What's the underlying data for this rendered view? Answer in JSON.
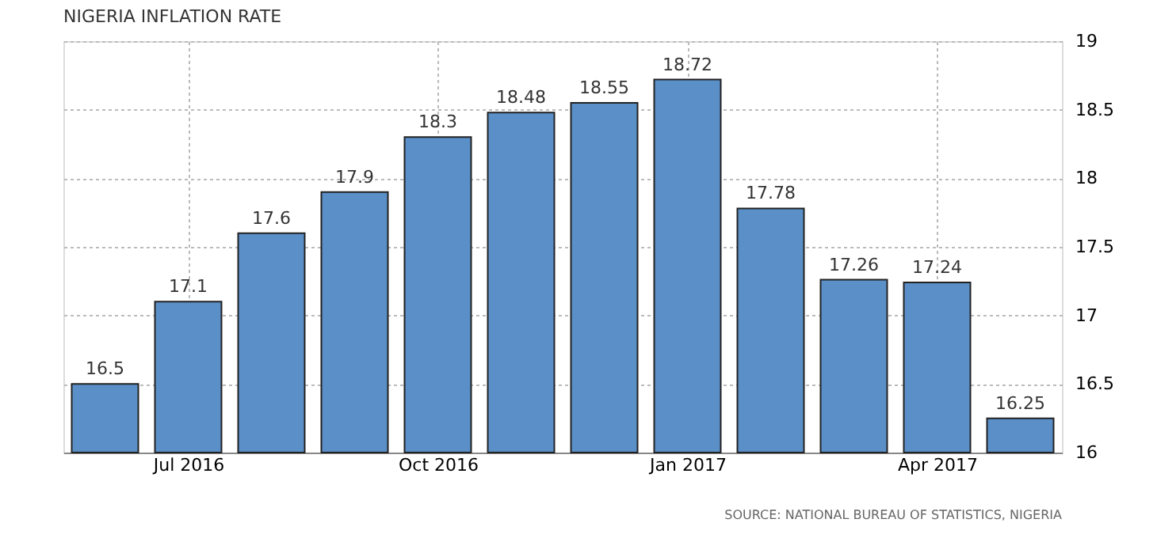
{
  "chart_data": {
    "type": "bar",
    "title": "NIGERIA INFLATION RATE",
    "categories": [
      null,
      "Jul 2016",
      null,
      null,
      "Oct 2016",
      null,
      null,
      "Jan 2017",
      null,
      null,
      "Apr 2017",
      null
    ],
    "values": [
      16.5,
      17.1,
      17.6,
      17.9,
      18.3,
      18.48,
      18.55,
      18.72,
      17.78,
      17.26,
      17.24,
      16.25
    ],
    "color": "#5b8fc7",
    "data_labels": true,
    "grid": true,
    "ylim": [
      16,
      19
    ],
    "yticks": [
      16,
      16.5,
      17,
      17.5,
      18,
      18.5,
      19
    ],
    "annotations": [
      "SOURCE: NATIONAL BUREAU OF STATISTICS, NIGERIA"
    ]
  }
}
